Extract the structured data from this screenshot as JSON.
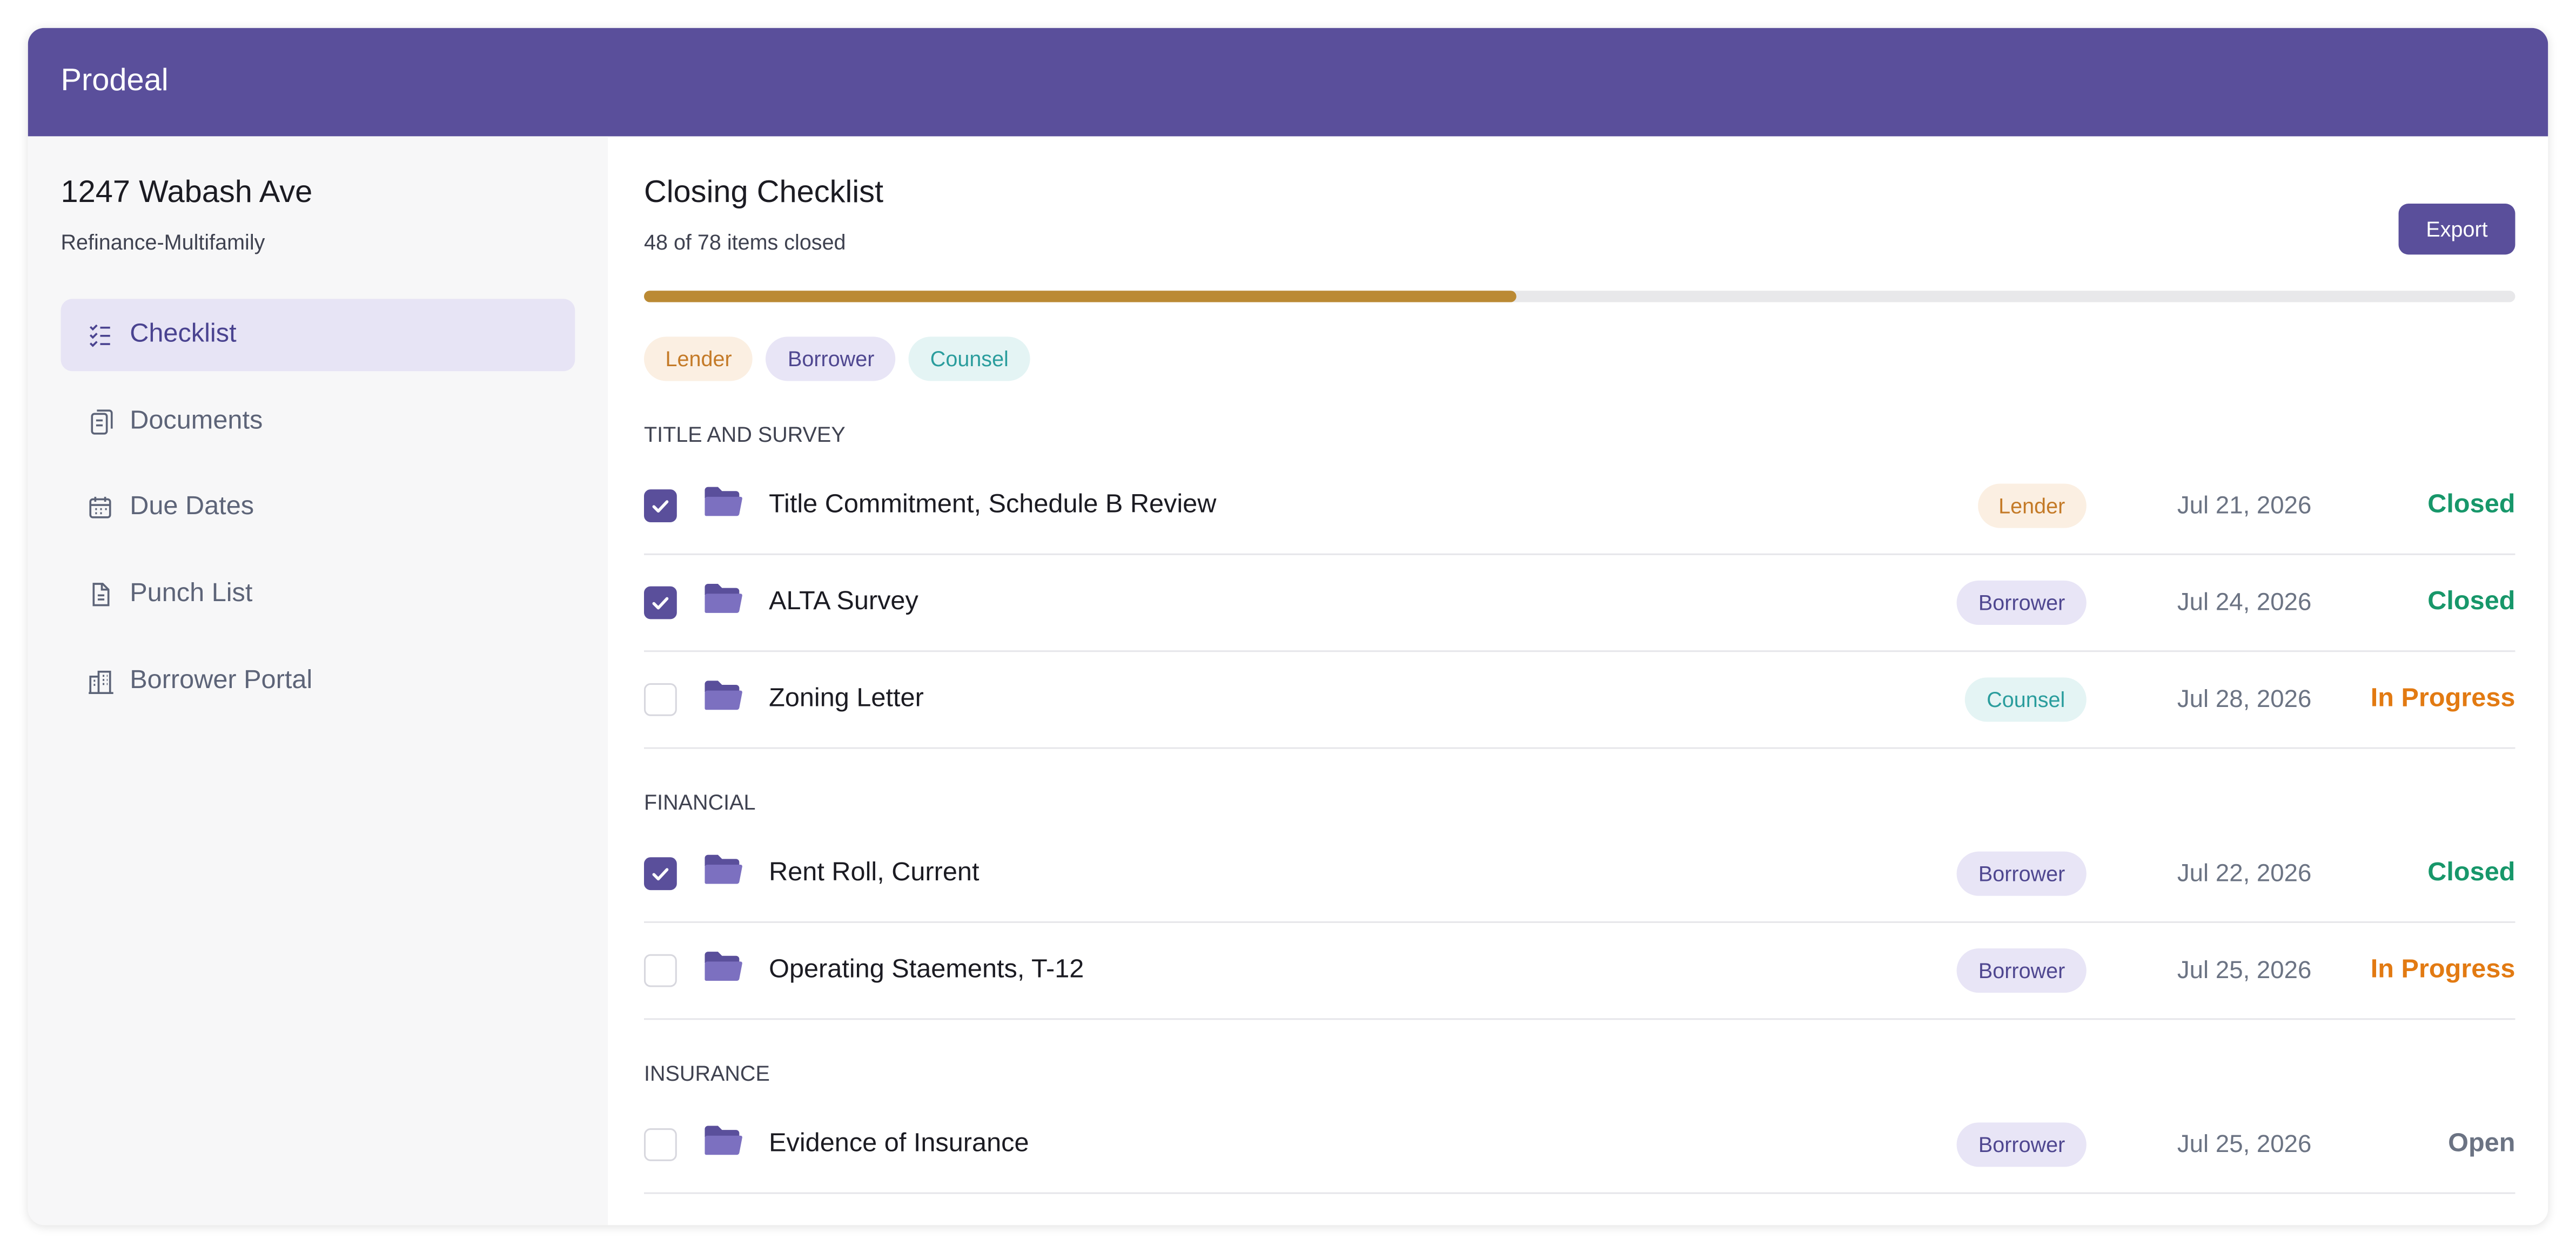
{
  "header": {
    "app_name": "Prodeal"
  },
  "sidebar": {
    "property": "1247 Wabash Ave",
    "deal_type": "Refinance-Multifamily",
    "nav": [
      {
        "label": "Checklist",
        "active": true
      },
      {
        "label": "Documents",
        "active": false
      },
      {
        "label": "Due Dates",
        "active": false
      },
      {
        "label": "Punch List",
        "active": false
      },
      {
        "label": "Borrower Portal",
        "active": false
      }
    ]
  },
  "main": {
    "title": "Closing Checklist",
    "summary": "48 of 78 items closed",
    "export": "Export",
    "filters": [
      {
        "label": "Lender",
        "color": "#c47a27",
        "background": "#fbefe2"
      },
      {
        "label": "Borrower",
        "color": "#4f4790",
        "background": "#e8e5f6"
      },
      {
        "label": "Counsel",
        "color": "#2a9d9d",
        "background": "#e4f4f4"
      }
    ],
    "sections": [
      {
        "title": "TITLE AND SURVEY",
        "items": [
          {
            "name": "Title Commitment, Schedule B Review",
            "party": "Lender",
            "due": "Jul 21, 2026",
            "status": "Closed",
            "status_color": "#17976a",
            "checked": true
          },
          {
            "name": "ALTA Survey",
            "party": "Borrower",
            "due": "Jul 24, 2026",
            "status": "Closed",
            "status_color": "#17976a",
            "checked": true
          },
          {
            "name": "Zoning Letter",
            "party": "Counsel",
            "due": "Jul 28, 2026",
            "status": "In Progress",
            "status_color": "#e27a12",
            "checked": false
          }
        ]
      },
      {
        "title": "FINANCIAL",
        "items": [
          {
            "name": "Rent Roll, Current",
            "party": "Borrower",
            "due": "Jul 22, 2026",
            "status": "Closed",
            "status_color": "#17976a",
            "checked": true
          },
          {
            "name": "Operating Staements, T-12",
            "party": "Borrower",
            "due": "Jul 25, 2026",
            "status": "In Progress",
            "status_color": "#e27a12",
            "checked": false
          }
        ]
      },
      {
        "title": "INSURANCE",
        "items": [
          {
            "name": "Evidence of Insurance",
            "party": "Borrower",
            "due": "Jul 25, 2026",
            "status": "Open",
            "status_color": "#6b7383",
            "checked": false
          }
        ]
      }
    ]
  }
}
